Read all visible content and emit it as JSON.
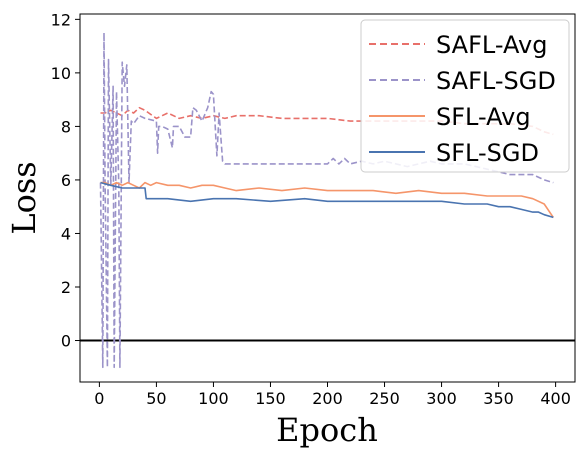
{
  "chart_data": {
    "type": "line",
    "xlabel": "Epoch",
    "ylabel": "Loss",
    "xlim": [
      -17,
      417
    ],
    "ylim": [
      -1.55,
      12.2
    ],
    "xticks": [
      0,
      50,
      100,
      150,
      200,
      250,
      300,
      350,
      400
    ],
    "yticks": [
      0,
      2,
      4,
      6,
      8,
      10,
      12
    ],
    "grid": false,
    "legend_position": "top-right",
    "hline": 0,
    "series": [
      {
        "name": "SAFL-Avg",
        "color": "#E8706A",
        "dash": "dashed",
        "x": [
          1,
          5,
          10,
          15,
          20,
          25,
          30,
          35,
          40,
          50,
          60,
          70,
          80,
          90,
          100,
          110,
          120,
          140,
          160,
          180,
          200,
          220,
          240,
          260,
          280,
          300,
          320,
          340,
          360,
          380,
          390,
          398
        ],
        "y": [
          8.5,
          8.5,
          8.6,
          8.5,
          8.4,
          8.6,
          8.5,
          8.7,
          8.6,
          8.3,
          8.5,
          8.3,
          8.4,
          8.3,
          8.4,
          8.3,
          8.4,
          8.4,
          8.3,
          8.3,
          8.3,
          8.2,
          8.2,
          8.2,
          8.2,
          8.2,
          8.1,
          8.1,
          8.1,
          8.0,
          7.8,
          7.7
        ]
      },
      {
        "name": "SAFL-SGD",
        "color": "#9B93C9",
        "dash": "dashed",
        "x": [
          1,
          3,
          4,
          5,
          7,
          8,
          10,
          12,
          13,
          15,
          17,
          18,
          20,
          22,
          24,
          26,
          28,
          30,
          35,
          40,
          50,
          51,
          52,
          55,
          60,
          64,
          65,
          70,
          75,
          80,
          82,
          85,
          90,
          95,
          98,
          100,
          103,
          105,
          108,
          110,
          120,
          140,
          160,
          180,
          200,
          205,
          210,
          215,
          220,
          230,
          240,
          250,
          260,
          270,
          280,
          290,
          300,
          320,
          340,
          360,
          380,
          390,
          398
        ],
        "y": [
          5.9,
          -1,
          11.5,
          5.9,
          -1,
          10.5,
          5.8,
          9.5,
          -1,
          9.3,
          5.8,
          -1,
          10.4,
          9.5,
          10.3,
          5.9,
          8.2,
          8.1,
          8.4,
          8.3,
          8.2,
          7.0,
          8.0,
          8.0,
          7.9,
          7.2,
          8.0,
          8.0,
          7.6,
          7.6,
          8.7,
          8.6,
          8.2,
          8.7,
          9.3,
          9.2,
          6.9,
          8.5,
          6.7,
          6.6,
          6.6,
          6.6,
          6.6,
          6.6,
          6.6,
          6.8,
          6.6,
          6.8,
          6.6,
          6.7,
          6.6,
          6.7,
          6.6,
          6.5,
          6.6,
          6.7,
          6.6,
          6.6,
          6.4,
          6.2,
          6.2,
          6.0,
          5.9
        ]
      },
      {
        "name": "SFL-Avg",
        "color": "#F5956A",
        "dash": "solid",
        "x": [
          1,
          5,
          10,
          15,
          20,
          25,
          30,
          35,
          40,
          45,
          50,
          60,
          70,
          80,
          90,
          100,
          110,
          120,
          140,
          160,
          180,
          200,
          220,
          240,
          260,
          280,
          300,
          320,
          340,
          360,
          370,
          380,
          390,
          398
        ],
        "y": [
          5.9,
          5.9,
          5.8,
          5.9,
          5.8,
          5.9,
          5.8,
          5.7,
          5.9,
          5.8,
          5.9,
          5.8,
          5.8,
          5.7,
          5.8,
          5.8,
          5.7,
          5.6,
          5.7,
          5.6,
          5.7,
          5.6,
          5.6,
          5.6,
          5.5,
          5.6,
          5.5,
          5.5,
          5.4,
          5.4,
          5.4,
          5.3,
          5.1,
          4.6
        ]
      },
      {
        "name": "SFL-SGD",
        "color": "#4A74B0",
        "dash": "solid",
        "x": [
          1,
          10,
          20,
          30,
          40,
          41,
          50,
          60,
          80,
          100,
          120,
          150,
          180,
          200,
          220,
          250,
          280,
          300,
          320,
          340,
          350,
          360,
          370,
          380,
          385,
          390,
          398
        ],
        "y": [
          5.9,
          5.8,
          5.7,
          5.7,
          5.7,
          5.3,
          5.3,
          5.3,
          5.2,
          5.3,
          5.3,
          5.2,
          5.3,
          5.2,
          5.2,
          5.2,
          5.2,
          5.2,
          5.1,
          5.1,
          5.0,
          5.0,
          4.9,
          4.8,
          4.8,
          4.7,
          4.6
        ]
      }
    ]
  }
}
